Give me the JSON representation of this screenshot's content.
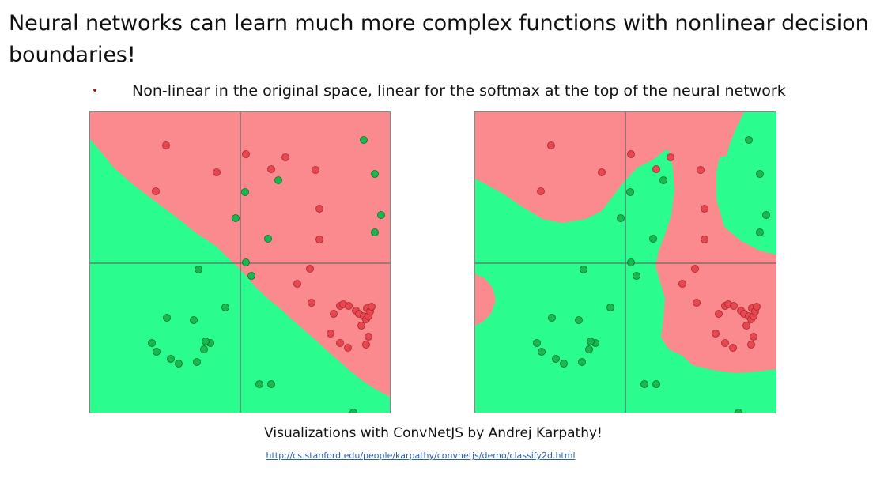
{
  "slide": {
    "title": "Neural networks can learn much more complex functions with nonlinear decision boundaries!",
    "bullet": "Non-linear in the original space, linear for the softmax at the top of the neural network",
    "caption": "Visualizations with ConvNetJS by Andrej Karpathy!",
    "link": "http://cs.stanford.edu/people/karpathy/convnetjs/demo/classify2d.html"
  },
  "colors": {
    "red_region": "#fb8a8e",
    "green_region": "#2bfc8e",
    "red_point": "#e8474f",
    "green_point": "#18b84d",
    "axis": "#555555"
  },
  "plots": [
    {
      "name": "linear-boundary-plot",
      "classes": [
        "red",
        "green"
      ]
    },
    {
      "name": "nonlinear-boundary-plot",
      "classes": [
        "red",
        "green"
      ]
    }
  ]
}
